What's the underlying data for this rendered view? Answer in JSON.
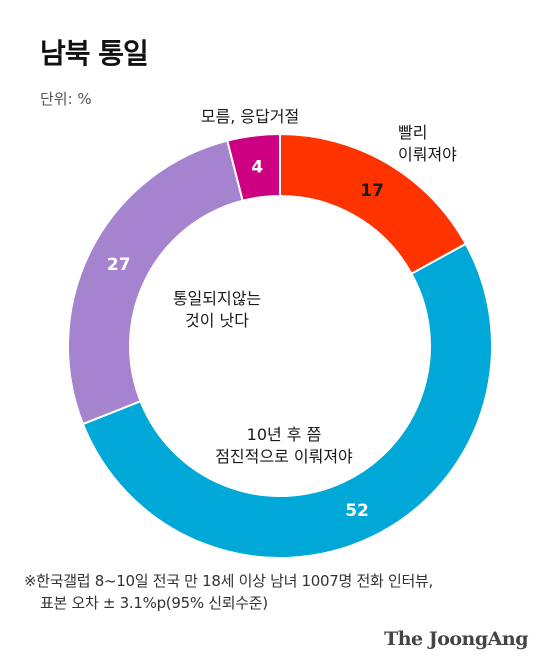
{
  "header": {
    "title": "남북 통일",
    "unit": "단위: %"
  },
  "chart_data": {
    "type": "pie",
    "donut": true,
    "center_label": [
      "통일되지않는",
      "것이 낫다"
    ],
    "slices": [
      {
        "label": [
          "빨리",
          "이뤄져야"
        ],
        "value": 17,
        "color": "#ff3300",
        "value_color": "#1a1a1a"
      },
      {
        "label": [
          "10년 후 쯤",
          "점진적으로 이뤄져야"
        ],
        "value": 52,
        "color": "#00a8d8",
        "value_color": "#ffffff"
      },
      {
        "label": [],
        "value": 27,
        "color": "#a583cf",
        "value_color": "#ffffff"
      },
      {
        "label": [
          "모름, 응답거절"
        ],
        "value": 4,
        "color": "#cc0080",
        "value_color": "#ffffff"
      }
    ]
  },
  "footer": {
    "note_line1": "※한국갤럽 8~10일 전국 만 18세 이상 남녀 1007명 전화 인터뷰,",
    "note_line2": "표본 오차 ± 3.1%p(95% 신뢰수준)",
    "brand": "The JoongAng"
  }
}
